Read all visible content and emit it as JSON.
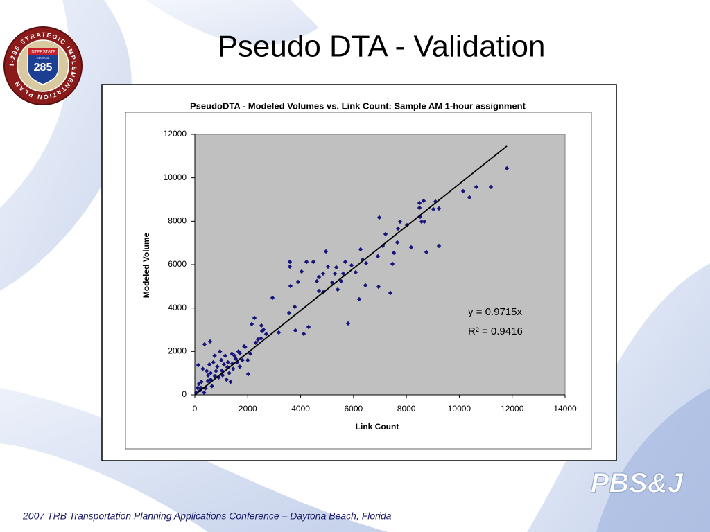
{
  "slide_title": "Pseudo DTA - Validation",
  "footer": "2007 TRB Transportation Planning Applications Conference – Daytona Beach, Florida",
  "logo": {
    "ring_text": "I-285 STRATEGIC IMPLEMENTATION PLAN",
    "shield_top": "INTERSTATE",
    "shield_state": "GEORGIA",
    "shield_number": "285"
  },
  "company_logo": "PBS&J",
  "chart_data": {
    "type": "scatter",
    "title": "PseudoDTA - Modeled Volumes vs. Link Count:  Sample AM 1-hour assignment",
    "x_label": "Link Count",
    "y_label": "Modeled Volume",
    "annotations": [
      "y = 0.9715x",
      "R² = 0.9416"
    ],
    "color": "#14147a",
    "plot_background": "#c0c0c0",
    "xlim": [
      0,
      14000
    ],
    "xticks": [
      0,
      2000,
      4000,
      6000,
      8000,
      10000,
      12000,
      14000
    ],
    "ylim": [
      0,
      12000
    ],
    "yticks": [
      0,
      2000,
      4000,
      6000,
      8000,
      10000,
      12000
    ],
    "trendline": {
      "slope": 0.9715,
      "x": [
        0,
        11800
      ],
      "color": "#000000"
    },
    "x": [
      11800,
      11195,
      10645,
      10383,
      10147,
      9098,
      9229,
      9020,
      8652,
      8495,
      8495,
      8522,
      8574,
      8678,
      9229,
      8757,
      8180,
      8023,
      7761,
      7682,
      6975,
      7210,
      7105,
      6922,
      7656,
      7525,
      7472,
      7394,
      6948,
      6450,
      6214,
      5795,
      6477,
      6267,
      6345,
      6083,
      5926,
      5690,
      5349,
      5034,
      4956,
      4851,
      4615,
      4484,
      4222,
      4038,
      3907,
      3618,
      3592,
      3592,
      4851,
      4694,
      5192,
      5402,
      5533,
      5611,
      5297,
      4694,
      4300,
      4117,
      3802,
      3566,
      3776,
      2937,
      3173,
      2543,
      2517,
      2255,
      2150,
      2386,
      2019,
      1862,
      1704,
      1547,
      1416,
      1233,
      1023,
      760,
      498,
      236,
      577,
      367,
      131,
      105,
      52,
      300,
      500,
      700,
      900,
      1100,
      1300,
      1500,
      1700,
      400,
      600,
      800,
      1000,
      1200,
      1400,
      1600,
      1800,
      250,
      450,
      650,
      850,
      1050,
      1250,
      1450,
      1650,
      1900,
      2100,
      2300,
      2500,
      2700,
      350,
      150,
      750,
      950,
      1150,
      550,
      200,
      2000,
      2600,
      1350,
      600
    ],
    "values": [
      10437,
      9575,
      9575,
      9097,
      9384,
      8905,
      8586,
      8554,
      8937,
      8841,
      8618,
      8203,
      7980,
      7980,
      6862,
      6575,
      6798,
      7820,
      7980,
      7660,
      8171,
      7405,
      6862,
      6384,
      7022,
      6543,
      6032,
      4692,
      4979,
      5043,
      4405,
      3288,
      6064,
      6703,
      6224,
      5650,
      5969,
      6128,
      5873,
      5905,
      6607,
      5586,
      5235,
      6128,
      6128,
      5682,
      5203,
      5011,
      6128,
      5905,
      4724,
      4788,
      5171,
      4852,
      5235,
      5586,
      5586,
      5426,
      3128,
      2809,
      2968,
      3766,
      4054,
      4469,
      2873,
      2937,
      3192,
      3543,
      3256,
      2553,
      957,
      2234,
      1915,
      1660,
      1436,
      1277,
      1117,
      862,
      638,
      319,
      2458,
      2330,
      1372,
      319,
      96,
      1200,
      900,
      1500,
      800,
      1400,
      1000,
      1800,
      1300,
      300,
      700,
      1100,
      1600,
      700,
      1900,
      1500,
      1600,
      600,
      1100,
      400,
      1300,
      900,
      1500,
      1200,
      2000,
      2200,
      1900,
      2400,
      2600,
      2800,
      100,
      500,
      1800,
      2000,
      1800,
      1400,
      200,
      1600,
      3000,
      600,
      1000
    ]
  }
}
